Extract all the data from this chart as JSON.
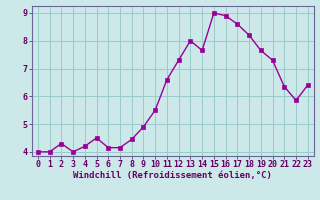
{
  "x": [
    0,
    1,
    2,
    3,
    4,
    5,
    6,
    7,
    8,
    9,
    10,
    11,
    12,
    13,
    14,
    15,
    16,
    17,
    18,
    19,
    20,
    21,
    22,
    23
  ],
  "y": [
    4.0,
    4.0,
    4.3,
    4.0,
    4.2,
    4.5,
    4.15,
    4.15,
    4.45,
    4.9,
    5.5,
    6.6,
    7.3,
    8.0,
    7.65,
    9.0,
    8.9,
    8.6,
    8.2,
    7.65,
    7.3,
    6.35,
    5.85,
    6.4
  ],
  "line_color": "#990099",
  "marker": "s",
  "marker_size": 2.2,
  "bg_color": "#cce8e8",
  "grid_color": "#99cccc",
  "xlabel": "Windchill (Refroidissement éolien,°C)",
  "xlim_min": -0.5,
  "xlim_max": 23.5,
  "ylim_min": 3.85,
  "ylim_max": 9.25,
  "xticks": [
    0,
    1,
    2,
    3,
    4,
    5,
    6,
    7,
    8,
    9,
    10,
    11,
    12,
    13,
    14,
    15,
    16,
    17,
    18,
    19,
    20,
    21,
    22,
    23
  ],
  "yticks": [
    4,
    5,
    6,
    7,
    8,
    9
  ],
  "xlabel_fontsize": 6.5,
  "tick_fontsize": 6.0,
  "axis_color": "#660066",
  "spine_color": "#666699",
  "linewidth": 1.0
}
